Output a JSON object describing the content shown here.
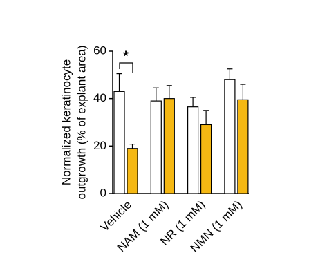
{
  "chart_data": {
    "type": "bar",
    "y_label_lines": [
      "Normalized keratinocyte",
      "outgrowth (% of explant area)"
    ],
    "categories": [
      "Vehicle",
      "NAM (1 mM)",
      "NR (1 mM)",
      "NMN (1 mM)"
    ],
    "series": [
      {
        "color": "#ffffff",
        "values": [
          43,
          39,
          36.5,
          48
        ],
        "errors": [
          7.5,
          5.5,
          4,
          4.5
        ]
      },
      {
        "color": "#f5b813",
        "values": [
          19,
          40,
          29,
          39.5
        ],
        "errors": [
          1.8,
          5.5,
          6,
          6.5
        ]
      }
    ],
    "annotation": "*",
    "ylim": [
      0,
      60
    ],
    "yticks": [
      0,
      20,
      40,
      60
    ],
    "grid": false
  }
}
